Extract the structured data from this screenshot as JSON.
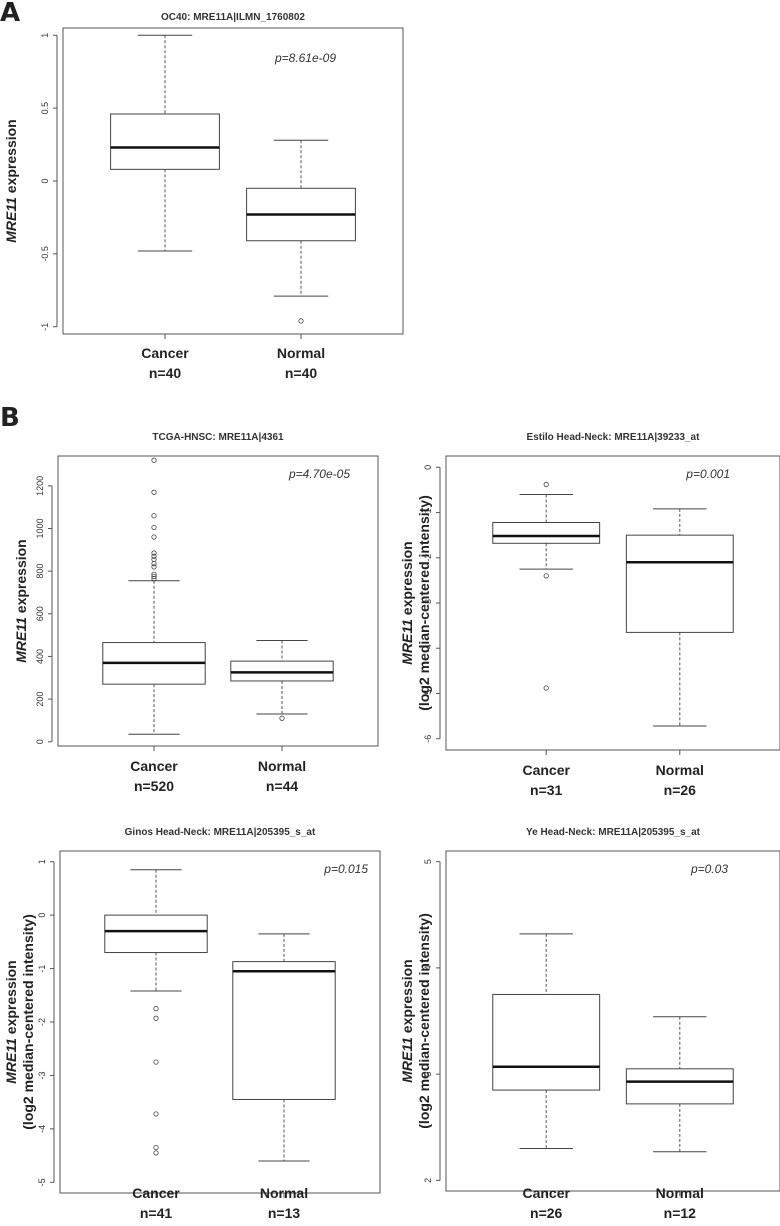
{
  "panels": {
    "a": "A",
    "b": "B"
  },
  "chart_data": [
    {
      "type": "box",
      "title": "OC40: MRE11A|ILMN_1760802",
      "pvalue": "p=8.61e-09",
      "ylabel_gene": "MRE11",
      "ylabel_rest": " expression",
      "ylabel_line2": "",
      "ylim": [
        -1.05,
        1.05
      ],
      "yticks": [
        -1,
        -0.5,
        0,
        0.5,
        1
      ],
      "ytick_labels": [
        "-1",
        "-0.5",
        "0",
        "0.5",
        "1"
      ],
      "groups": [
        {
          "name": "Cancer",
          "n": "n=40",
          "whisker_low": -0.48,
          "q1": 0.08,
          "median": 0.23,
          "q3": 0.46,
          "whisker_high": 1.0,
          "outliers": []
        },
        {
          "name": "Normal",
          "n": "n=40",
          "whisker_low": -0.79,
          "q1": -0.41,
          "median": -0.23,
          "q3": -0.05,
          "whisker_high": 0.28,
          "outliers": [
            -0.96
          ]
        }
      ]
    },
    {
      "type": "box",
      "title": "TCGA-HNSC: MRE11A|4361",
      "pvalue": "p=4.70e-05",
      "ylabel_gene": "MRE11",
      "ylabel_rest": " expression",
      "ylabel_line2": "",
      "ylim": [
        -20,
        1340
      ],
      "yticks": [
        0,
        200,
        400,
        600,
        800,
        1000,
        1200
      ],
      "ytick_labels": [
        "0",
        "200",
        "400",
        "600",
        "800",
        "1000",
        "1200"
      ],
      "groups": [
        {
          "name": "Cancer",
          "n": "n=520",
          "whisker_low": 35,
          "q1": 270,
          "median": 370,
          "q3": 465,
          "whisker_high": 755,
          "outliers": [
            765,
            775,
            785,
            820,
            835,
            855,
            870,
            885,
            960,
            1005,
            1060,
            1170,
            1320
          ]
        },
        {
          "name": "Normal",
          "n": "n=44",
          "whisker_low": 130,
          "q1": 285,
          "median": 325,
          "q3": 378,
          "whisker_high": 475,
          "outliers": [
            110
          ]
        }
      ]
    },
    {
      "type": "box",
      "title": "Estilo Head-Neck: MRE11A|39233_at",
      "pvalue": "p=0.001",
      "ylabel_gene": "MRE11",
      "ylabel_rest": " expression",
      "ylabel_line2": "(log2 median-centered intensity)",
      "ylim": [
        -6.25,
        0.25
      ],
      "yticks": [
        -6,
        -5,
        -4,
        -3,
        -2,
        -1,
        0
      ],
      "ytick_labels": [
        "-6",
        "-5",
        "-4",
        "-3",
        "-2",
        "-1",
        "0"
      ],
      "groups": [
        {
          "name": "Cancer",
          "n": "n=31",
          "whisker_low": -2.25,
          "q1": -1.68,
          "median": -1.52,
          "q3": -1.22,
          "whisker_high": -0.6,
          "outliers": [
            -0.38,
            -2.4,
            -4.88
          ]
        },
        {
          "name": "Normal",
          "n": "n=26",
          "whisker_low": -5.72,
          "q1": -3.65,
          "median": -2.1,
          "q3": -1.5,
          "whisker_high": -0.92,
          "outliers": []
        }
      ]
    },
    {
      "type": "box",
      "title": "Ginos Head-Neck: MRE11A|205395_s_at",
      "pvalue": "p=0.015",
      "ylabel_gene": "MRE11",
      "ylabel_rest": " expression",
      "ylabel_line2": "(log2 median-centered intensity)",
      "ylim": [
        -5.2,
        1.2
      ],
      "yticks": [
        -5,
        -4,
        -3,
        -2,
        -1,
        0,
        1
      ],
      "ytick_labels": [
        "-5",
        "-4",
        "-3",
        "-2",
        "-1",
        "0",
        "1"
      ],
      "groups": [
        {
          "name": "Cancer",
          "n": "n=41",
          "whisker_low": -1.42,
          "q1": -0.7,
          "median": -0.3,
          "q3": 0.0,
          "whisker_high": 0.85,
          "outliers": [
            -1.75,
            -1.93,
            -2.75,
            -3.72,
            -4.35,
            -4.45
          ]
        },
        {
          "name": "Normal",
          "n": "n=13",
          "whisker_low": -4.6,
          "q1": -3.45,
          "median": -1.05,
          "q3": -0.87,
          "whisker_high": -0.35,
          "outliers": []
        }
      ]
    },
    {
      "type": "box",
      "title": "Ye Head-Neck: MRE11A|205395_s_at",
      "pvalue": "p=0.03",
      "ylabel_gene": "MRE11",
      "ylabel_rest": " expression",
      "ylabel_line2": "(log2 median-centered intensity)",
      "ylim": [
        1.9,
        5.1
      ],
      "yticks": [
        2,
        3,
        4,
        5
      ],
      "ytick_labels": [
        "2",
        "3",
        "4",
        "5"
      ],
      "groups": [
        {
          "name": "Cancer",
          "n": "n=26",
          "whisker_low": 2.3,
          "q1": 2.85,
          "median": 3.07,
          "q3": 3.75,
          "whisker_high": 4.32,
          "outliers": []
        },
        {
          "name": "Normal",
          "n": "n=12",
          "whisker_low": 2.27,
          "q1": 2.72,
          "median": 2.93,
          "q3": 3.05,
          "whisker_high": 3.54,
          "outliers": []
        }
      ]
    }
  ]
}
